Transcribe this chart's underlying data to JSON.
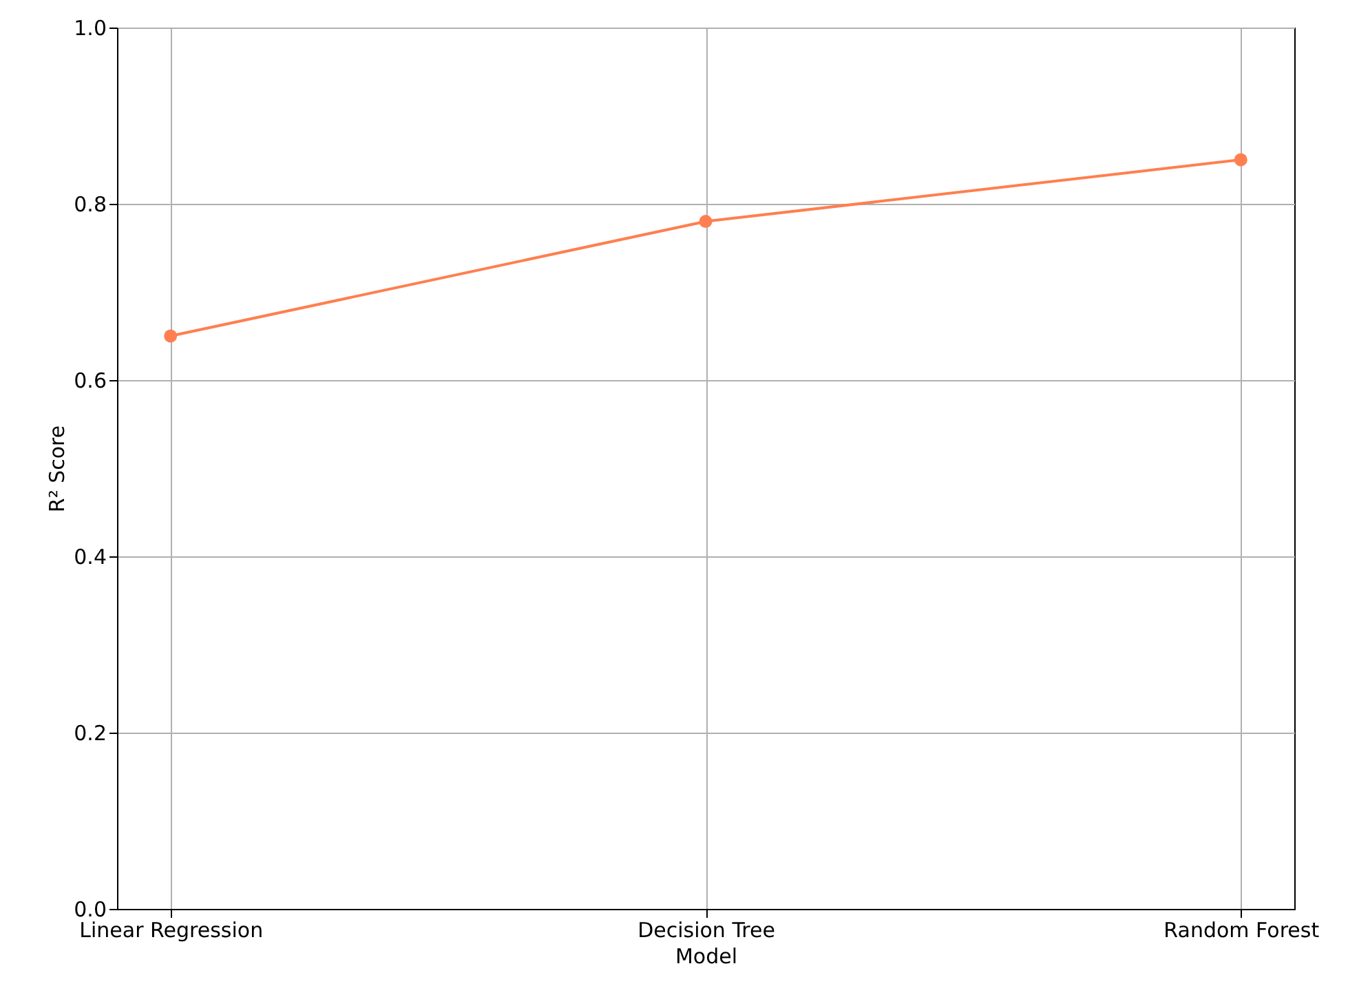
{
  "chart_data": {
    "type": "line",
    "xlabel": "Model",
    "ylabel": "R² Score",
    "categories": [
      "Linear Regression",
      "Decision Tree",
      "Random Forest"
    ],
    "series": [
      {
        "color": "#ff7f50",
        "values": [
          0.65,
          0.78,
          0.85
        ]
      }
    ],
    "ylim": [
      0,
      1
    ],
    "yticks": [
      {
        "value": 0,
        "label": "0.0"
      },
      {
        "value": 0.2,
        "label": "0.2"
      },
      {
        "value": 0.4,
        "label": "0.4"
      },
      {
        "value": 0.6,
        "label": "0.6"
      },
      {
        "value": 0.8,
        "label": "0.8"
      },
      {
        "value": 1,
        "label": "1.0"
      }
    ],
    "grid": true,
    "marker": "circle",
    "line_style": "solid"
  }
}
